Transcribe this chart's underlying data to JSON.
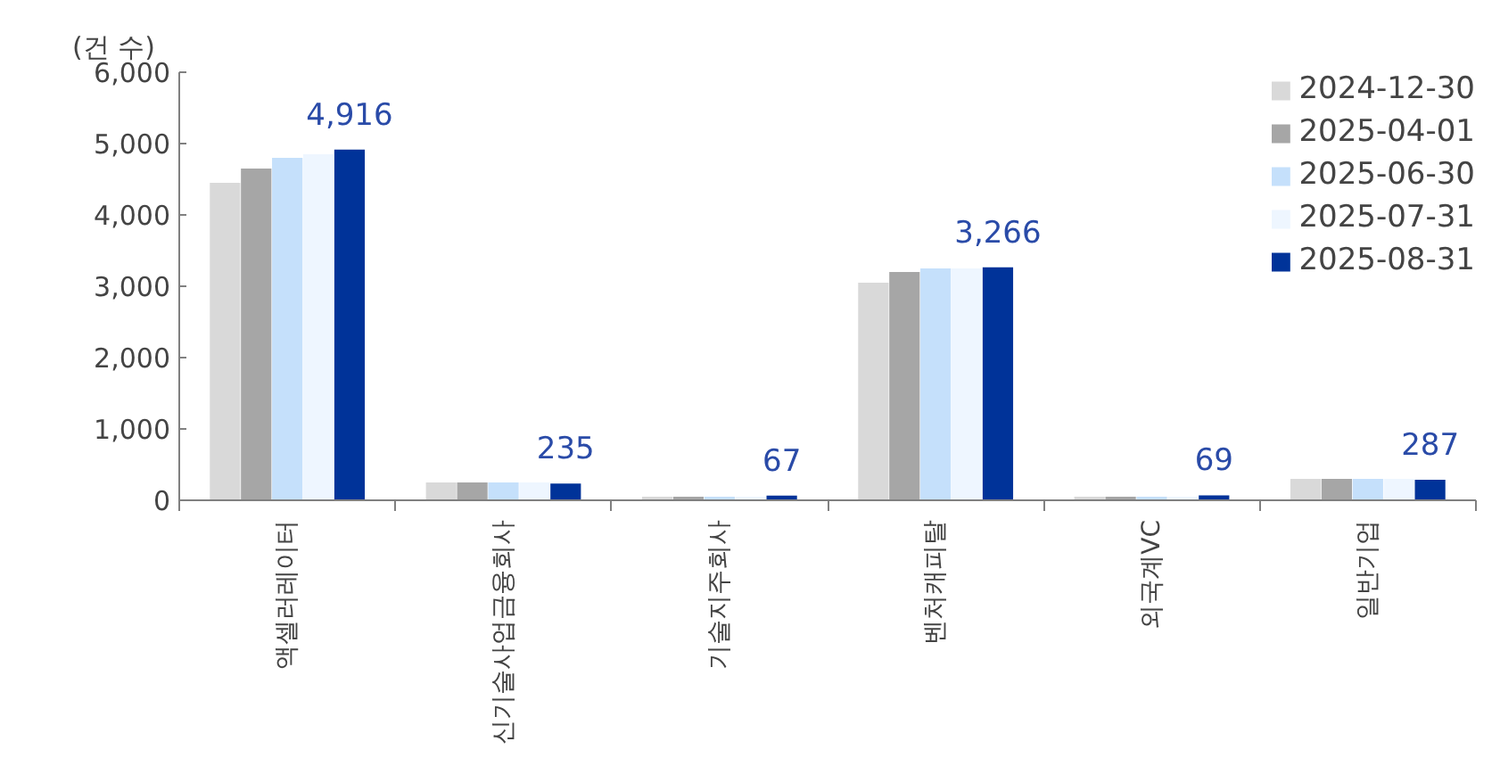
{
  "chart_data": {
    "type": "bar",
    "ylabel": "(건 수)",
    "categories": [
      "액셀러레이터",
      "신기술사업금융회사",
      "기술지주회사",
      "벤처캐피탈",
      "외국계VC",
      "일반기업"
    ],
    "series": [
      {
        "name": "2024-12-30",
        "color": "#d9d9d9",
        "values": [
          4450,
          250,
          50,
          3050,
          50,
          300
        ]
      },
      {
        "name": "2025-04-01",
        "color": "#a6a6a6",
        "values": [
          4650,
          250,
          50,
          3200,
          50,
          300
        ]
      },
      {
        "name": "2025-06-30",
        "color": "#c5e0fb",
        "values": [
          4800,
          250,
          50,
          3250,
          50,
          300
        ]
      },
      {
        "name": "2025-07-31",
        "color": "#eef6ff",
        "values": [
          4850,
          250,
          50,
          3250,
          50,
          300
        ]
      },
      {
        "name": "2025-08-31",
        "color": "#003399",
        "values": [
          4916,
          235,
          67,
          3266,
          69,
          287
        ],
        "value_labels": [
          "4,916",
          "235",
          "67",
          "3,266",
          "69",
          "287"
        ]
      }
    ],
    "ylim": [
      0,
      6000
    ],
    "yticks": [
      {
        "value": 0,
        "label": "0"
      },
      {
        "value": 1000,
        "label": "1,000"
      },
      {
        "value": 2000,
        "label": "2,000"
      },
      {
        "value": 3000,
        "label": "3,000"
      },
      {
        "value": 4000,
        "label": "4,000"
      },
      {
        "value": 5000,
        "label": "5,000"
      },
      {
        "value": 6000,
        "label": "6,000"
      }
    ],
    "legend": "top right",
    "grid": false
  }
}
